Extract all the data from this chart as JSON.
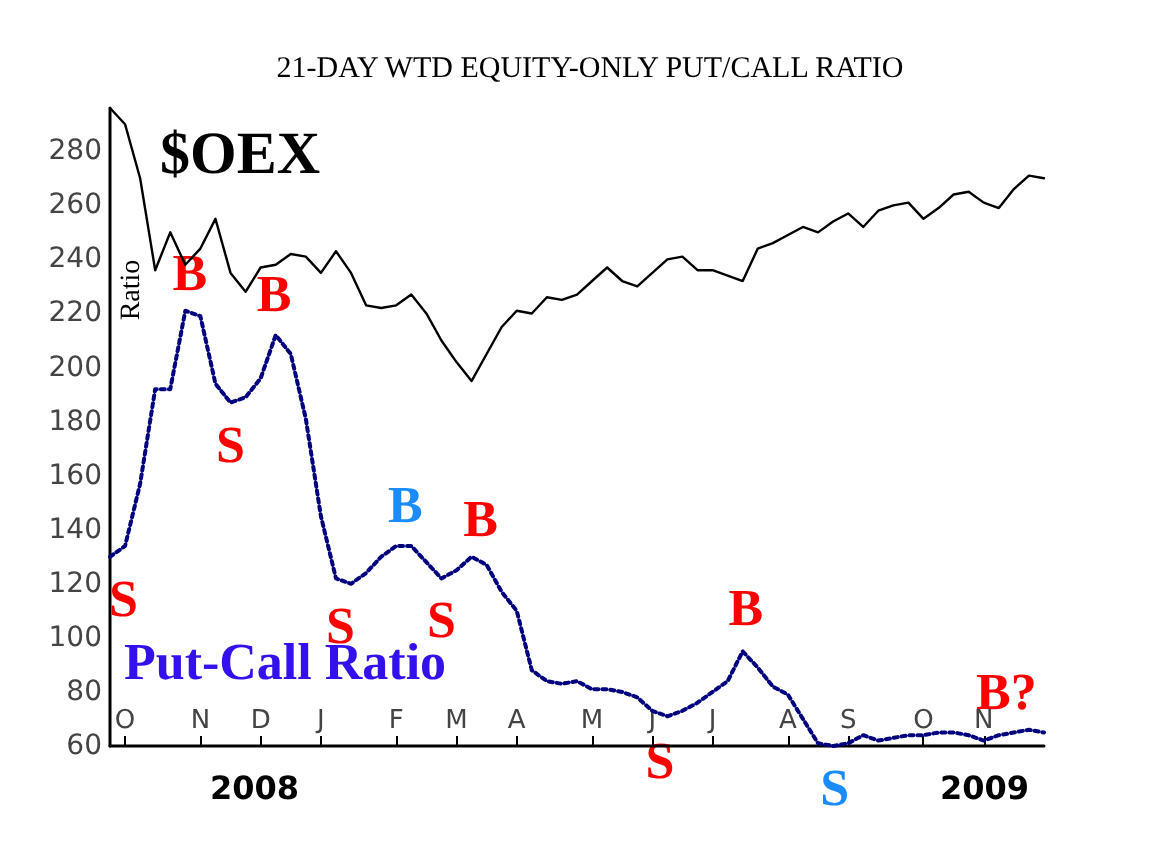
{
  "chart_data": {
    "type": "line",
    "title": "21-DAY WTD EQUITY-ONLY PUT/CALL RATIO",
    "ylabel": "Ratio",
    "categories": [
      null,
      "O",
      null,
      null,
      null,
      null,
      "N",
      null,
      null,
      null,
      "D",
      null,
      null,
      null,
      "J",
      null,
      null,
      null,
      null,
      "F",
      null,
      null,
      null,
      "M",
      null,
      null,
      null,
      "A",
      null,
      null,
      null,
      null,
      "M",
      null,
      null,
      null,
      "J",
      null,
      null,
      null,
      "J",
      null,
      null,
      null,
      null,
      "A",
      null,
      null,
      null,
      "S",
      null,
      null,
      null,
      null,
      "O",
      null,
      null,
      null,
      "N",
      null,
      null,
      null,
      null
    ],
    "ylim": [
      60,
      296
    ],
    "yticks": [
      60,
      80,
      100,
      120,
      140,
      160,
      180,
      200,
      220,
      240,
      260,
      280
    ],
    "grid": false,
    "legend": false,
    "marker": "none",
    "series": [
      {
        "name": "$OEX",
        "color": "#000000",
        "line_style": "solid",
        "values": [
          296,
          290,
          270,
          236,
          250,
          238,
          244,
          255,
          235,
          228,
          237,
          238,
          242,
          241,
          235,
          243,
          235,
          223,
          222,
          223,
          227,
          220,
          210,
          202,
          195,
          205,
          215,
          221,
          220,
          226,
          225,
          227,
          232,
          237,
          232,
          230,
          235,
          240,
          241,
          236,
          236,
          234,
          232,
          244,
          246,
          249,
          252,
          250,
          254,
          257,
          252,
          258,
          260,
          261,
          255,
          259,
          264,
          265,
          261,
          259,
          266,
          271,
          270
        ]
      },
      {
        "name": "Put-Call Ratio",
        "color": "#00007f",
        "line_style": "dotted",
        "values": [
          130,
          134,
          157,
          192,
          192,
          221,
          219,
          194,
          187,
          189,
          196,
          212,
          205,
          181,
          145,
          122,
          120,
          124,
          130,
          134,
          134,
          128,
          122,
          125,
          130,
          127,
          117,
          110,
          88,
          84,
          83,
          84,
          81,
          81,
          80,
          78,
          73,
          71,
          73,
          76,
          80,
          84,
          95,
          89,
          82,
          79,
          70,
          61,
          60,
          61,
          64,
          62,
          63,
          64,
          64,
          65,
          65,
          64,
          62,
          64,
          65,
          66,
          65
        ]
      }
    ],
    "annotations": [
      {
        "text": "S",
        "y": 130
      },
      {
        "text": "B",
        "y": 221
      },
      {
        "text": "S",
        "y": 187
      },
      {
        "text": "B",
        "y": 213
      },
      {
        "text": "S",
        "y": 120
      },
      {
        "text": "B",
        "y": 135
      },
      {
        "text": "S",
        "y": 122
      },
      {
        "text": "B",
        "y": 130
      },
      {
        "text": "S",
        "y": 70
      },
      {
        "text": "B",
        "y": 97
      },
      {
        "text": "S",
        "y": 60
      },
      {
        "text": "B?",
        "y": 66
      },
      "2008",
      "2009"
    ]
  }
}
